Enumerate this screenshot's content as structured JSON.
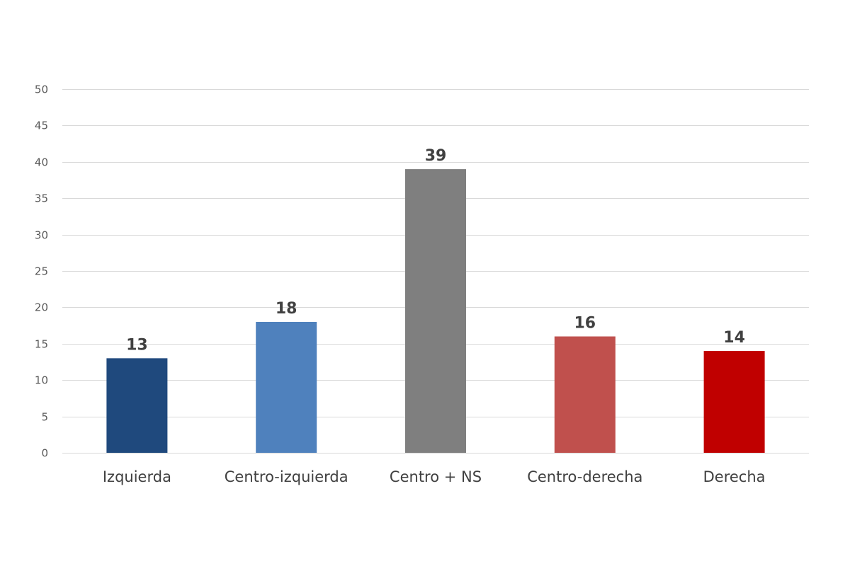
{
  "chart_data": {
    "type": "bar",
    "categories": [
      "Izquierda",
      "Centro-izquierda",
      "Centro + NS",
      "Centro-derecha",
      "Derecha"
    ],
    "values": [
      13,
      18,
      39,
      16,
      14
    ],
    "colors": [
      "#1f497d",
      "#4f81bd",
      "#7f7f7f",
      "#c0504d",
      "#c00000"
    ],
    "ylim": [
      0,
      50
    ],
    "yticks": [
      0,
      5,
      10,
      15,
      20,
      25,
      30,
      35,
      40,
      45,
      50
    ],
    "grid": true,
    "legend": "none",
    "data_labels": true
  }
}
